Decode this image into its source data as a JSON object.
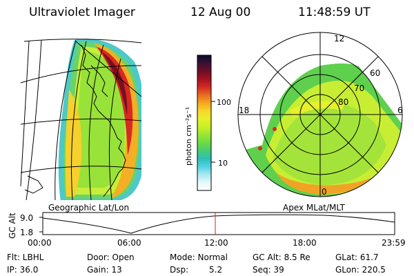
{
  "header": {
    "instrument": "Ultraviolet Imager",
    "date": "12 Aug 00",
    "time": "11:48:59 UT"
  },
  "left_panel": {
    "caption": "Geographic Lat/Lon"
  },
  "right_panel": {
    "caption": "Apex MLat/MLT",
    "mlt_labels": {
      "top": "12",
      "left": "18",
      "right": "6",
      "bottom": "0"
    },
    "lat_labels": [
      "60",
      "70",
      "80"
    ]
  },
  "colorbar": {
    "unit_label": "photon cm⁻²s⁻¹",
    "tick_labels": [
      "100",
      "10"
    ],
    "colors": [
      "#0c0b28",
      "#3b1036",
      "#6c0f26",
      "#a3121f",
      "#d12a23",
      "#e96a23",
      "#f3a71f",
      "#f9d52d",
      "#e6f02c",
      "#c8f024",
      "#98e632",
      "#6fda45",
      "#46cc74",
      "#2fc0b4",
      "#52d1e4",
      "#a6e8f0",
      "#e6f7fa",
      "#ffffff"
    ]
  },
  "timeline": {
    "y_axis_title": "GC Alt",
    "y_labels": [
      "9.0",
      "1.8"
    ],
    "x_labels": [
      "00:00",
      "06:00",
      "12:00",
      "18:00",
      "23:59"
    ],
    "marker_color": "#d02020"
  },
  "info": {
    "row1": {
      "filter": "Flt: LBHL",
      "door": "Door: Open",
      "mode": "Mode: Normal",
      "gc_alt": "GC Alt: 8.5 Re",
      "glat": "GLat: 61.7"
    },
    "row2": {
      "ip": "IP: 36.0",
      "gain": "Gain: 13",
      "dsp_label": "Dsp:",
      "dsp_value": "5.2",
      "seq": "Seq: 39",
      "glon": "GLon: 220.5"
    }
  }
}
